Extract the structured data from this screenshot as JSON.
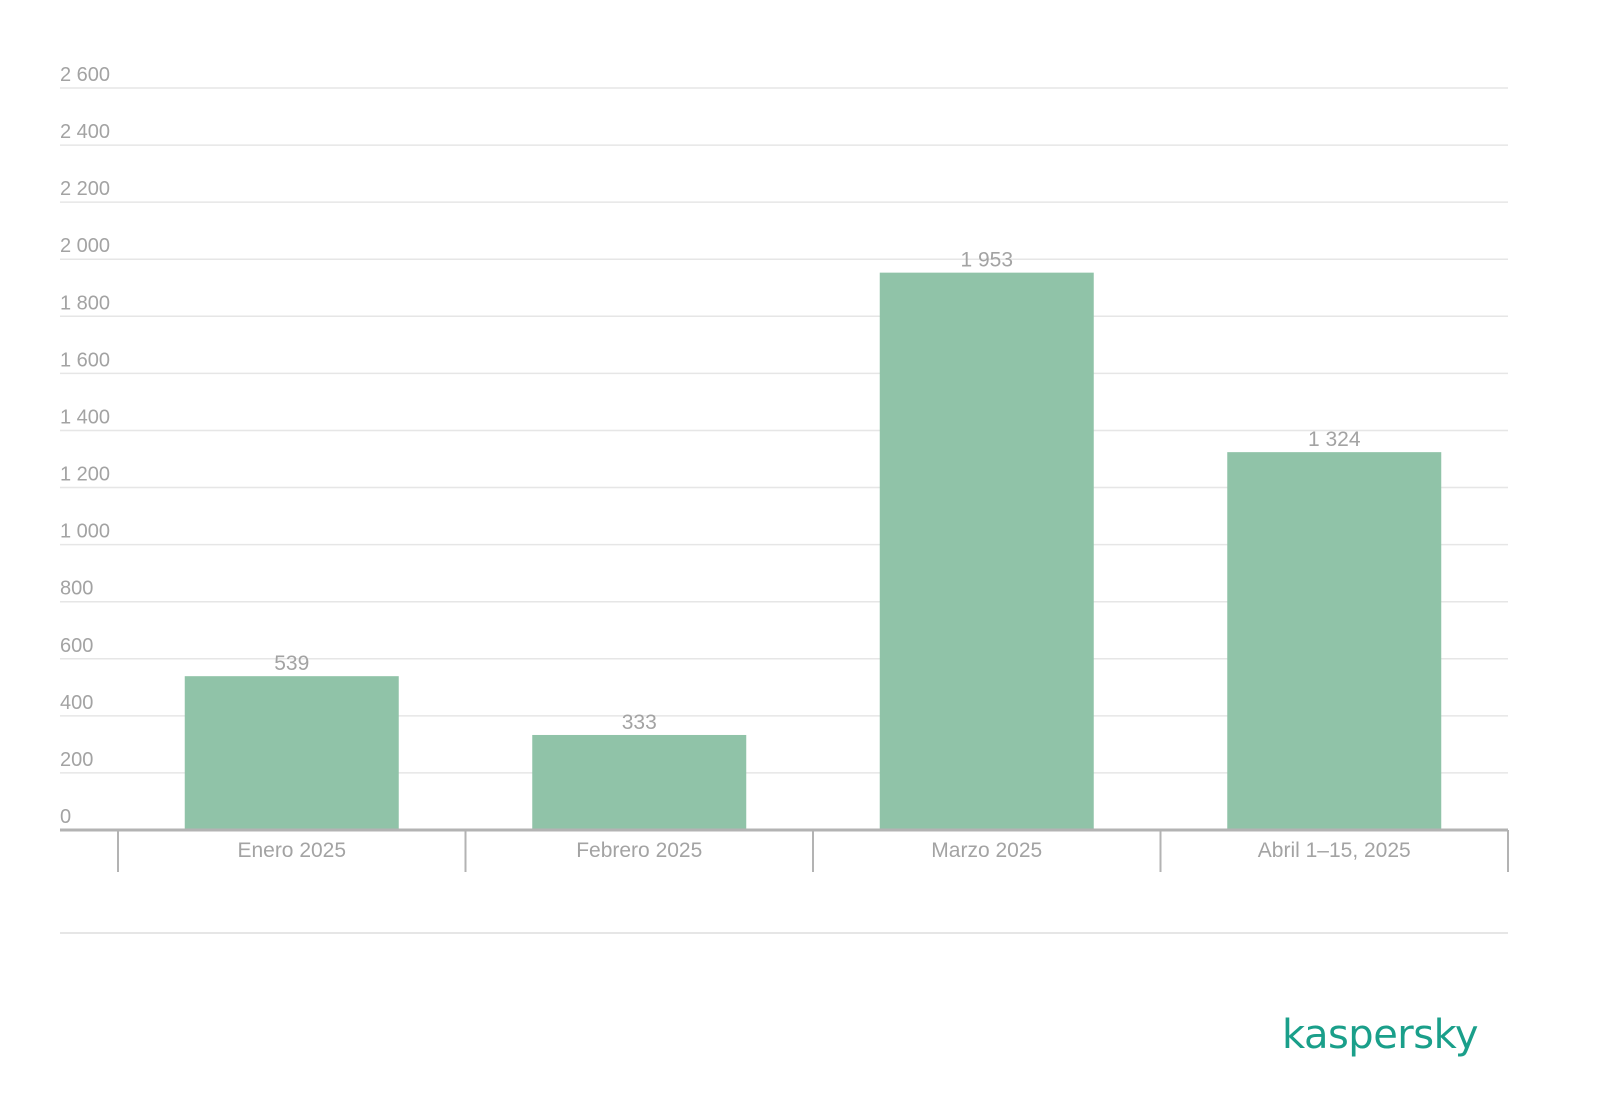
{
  "brand": {
    "logo_text": "kaspersky",
    "color": "#1a9f8a"
  },
  "colors": {
    "bar": "#90c3a8",
    "grid": "#e6e6e6",
    "axis": "#b3b3b3",
    "text": "#a3a3a3"
  },
  "chart_data": {
    "type": "bar",
    "categories": [
      "Enero 2025",
      "Febrero 2025",
      "Marzo 2025",
      "Abril 1–15, 2025"
    ],
    "values": [
      539,
      333,
      1953,
      1324
    ],
    "value_labels": [
      "539",
      "333",
      "1 953",
      "1 324"
    ],
    "title": "",
    "xlabel": "",
    "ylabel": "",
    "ylim": [
      0,
      2600
    ],
    "yticks": [
      0,
      200,
      400,
      600,
      800,
      1000,
      1200,
      1400,
      1600,
      1800,
      2000,
      2200,
      2400,
      2600
    ],
    "ytick_labels": [
      "0",
      "200",
      "400",
      "600",
      "800",
      "1 000",
      "1 200",
      "1 400",
      "1 600",
      "1 800",
      "2 000",
      "2 200",
      "2 400",
      "2 600"
    ],
    "grid": true,
    "legend": "none"
  }
}
